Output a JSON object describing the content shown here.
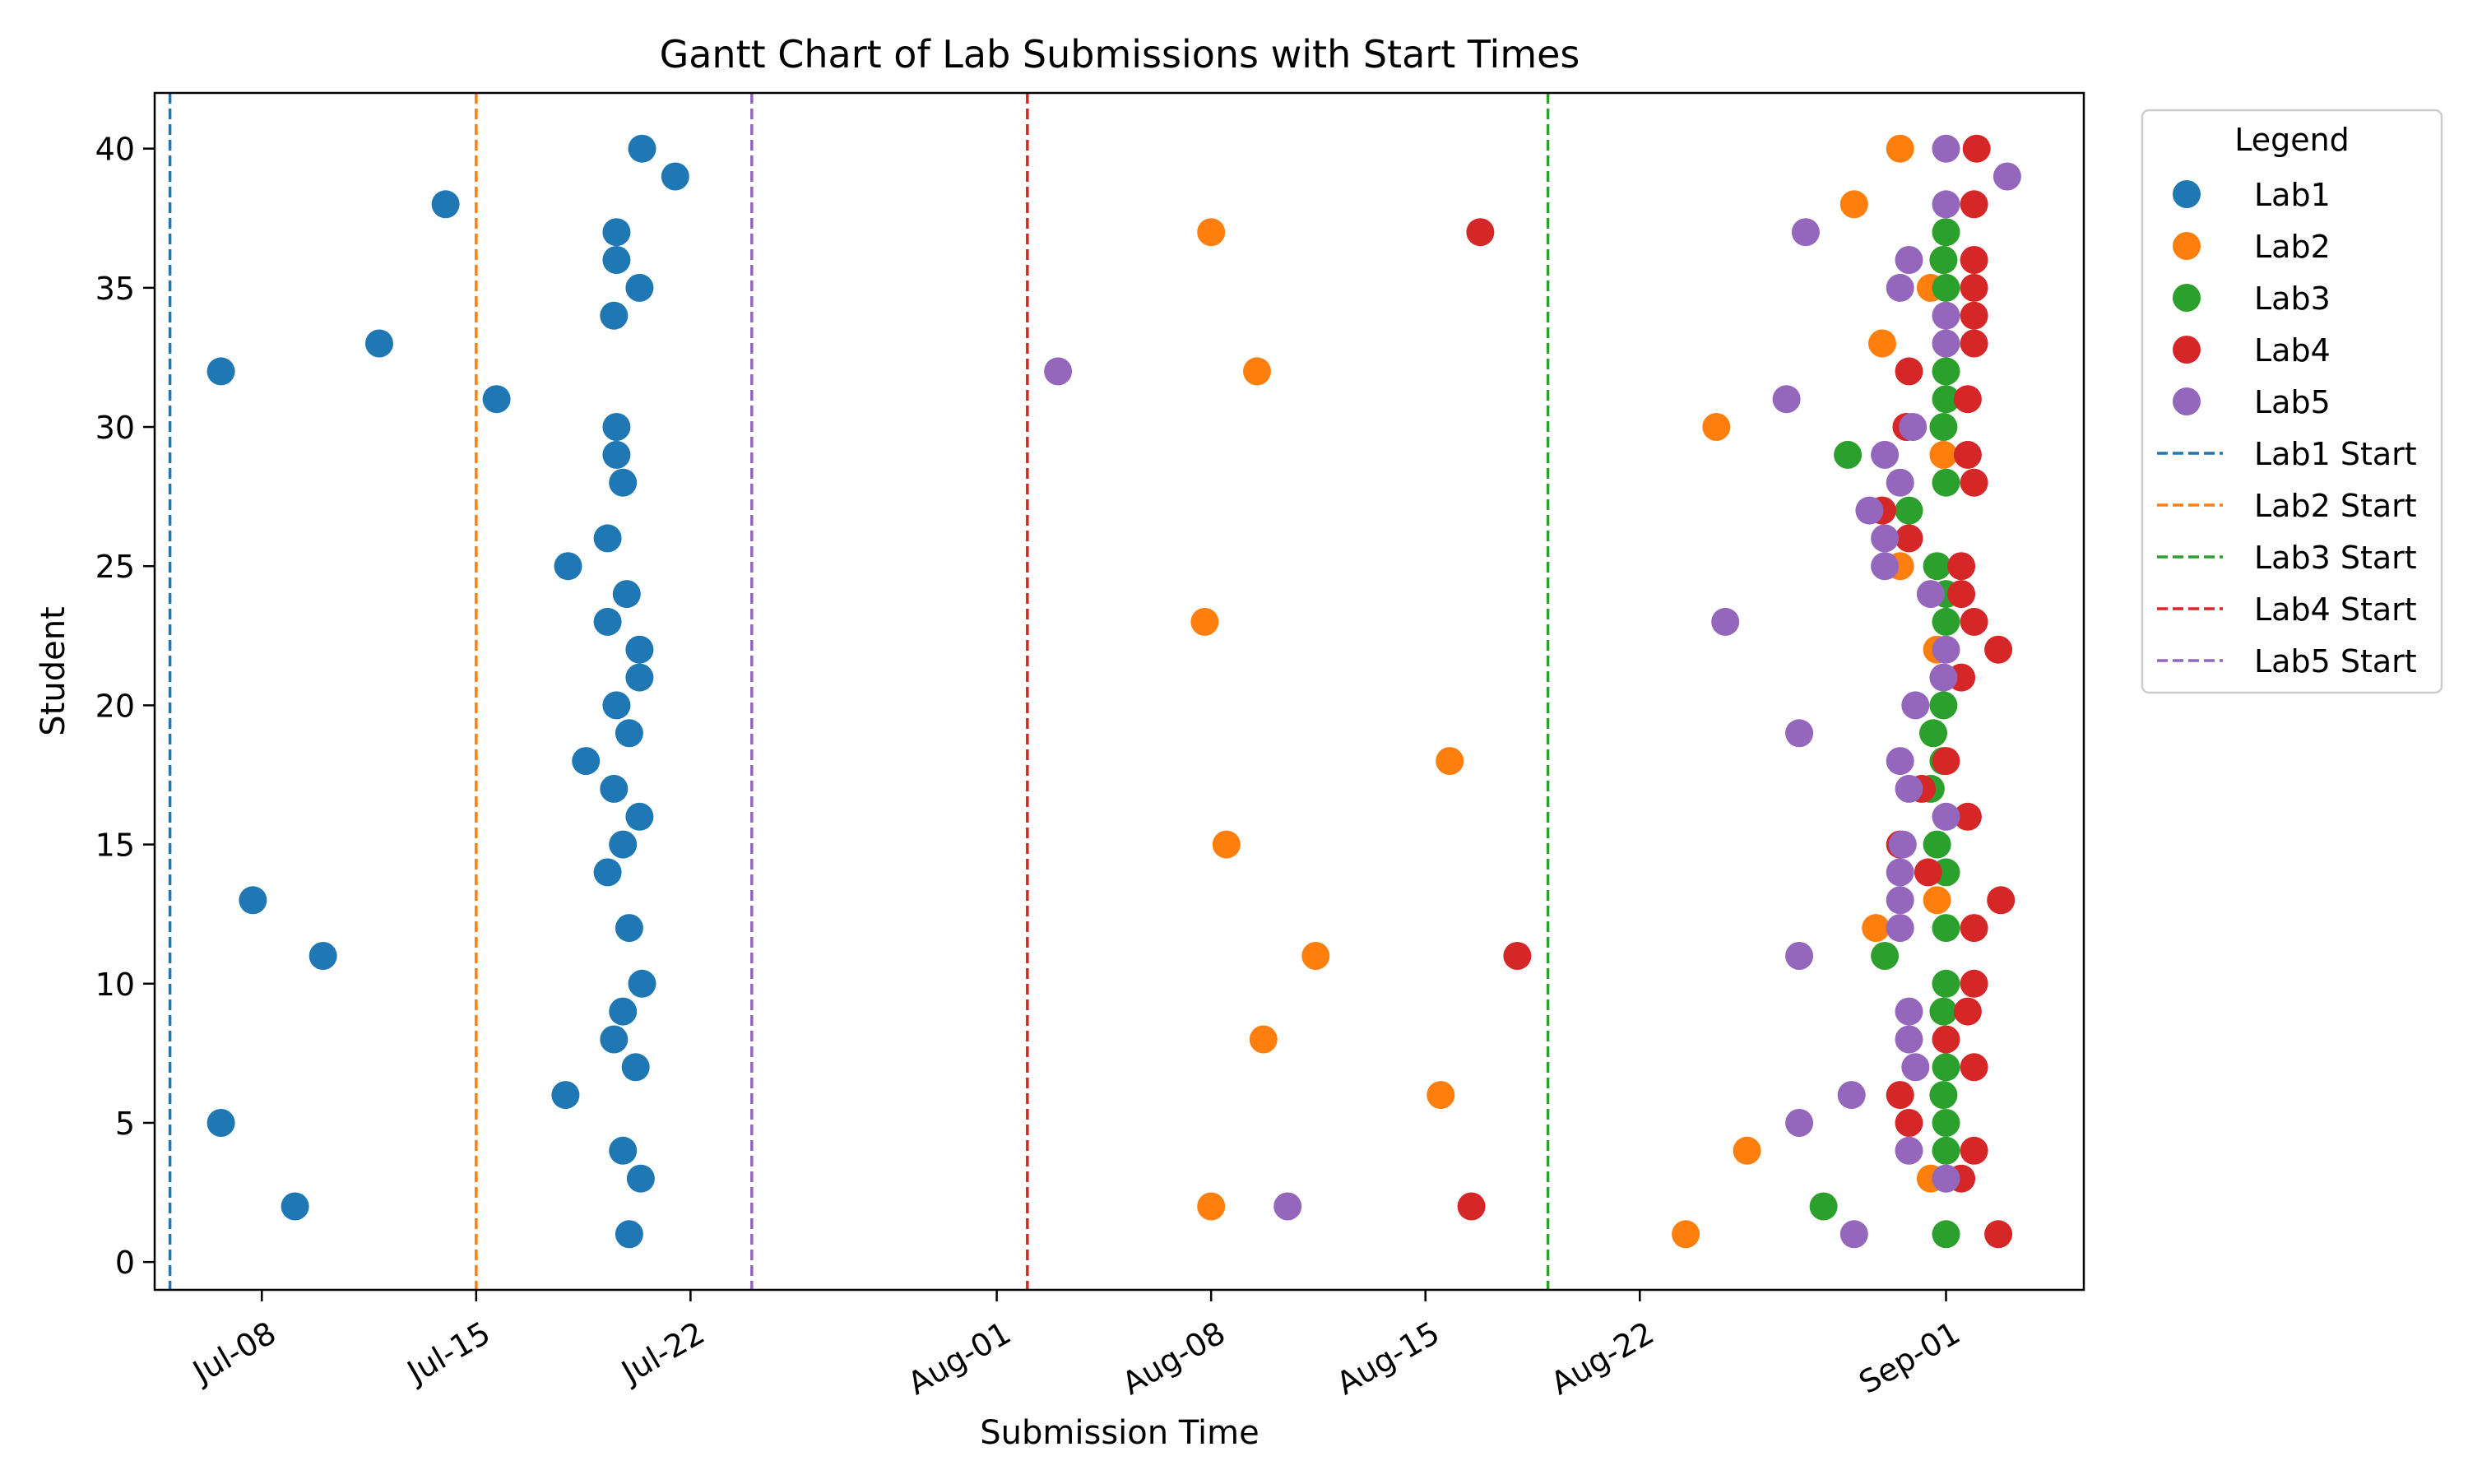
{
  "chart_data": {
    "type": "scatter",
    "title": "Gantt Chart of Lab Submissions with Start Times",
    "xlabel": "Submission Time",
    "ylabel": "Student",
    "x_axis_type": "date",
    "xlim": [
      "2024-07-04T12:00",
      "2024-09-05T12:00"
    ],
    "ylim": [
      -1,
      42
    ],
    "x_ticks": [
      {
        "date": "2024-07-08",
        "label": "Jul-08"
      },
      {
        "date": "2024-07-15",
        "label": "Jul-15"
      },
      {
        "date": "2024-07-22",
        "label": "Jul-22"
      },
      {
        "date": "2024-08-01",
        "label": "Aug-01"
      },
      {
        "date": "2024-08-08",
        "label": "Aug-08"
      },
      {
        "date": "2024-08-15",
        "label": "Aug-15"
      },
      {
        "date": "2024-08-22",
        "label": "Aug-22"
      },
      {
        "date": "2024-09-01",
        "label": "Sep-01"
      }
    ],
    "y_ticks": [
      0,
      5,
      10,
      15,
      20,
      25,
      30,
      35,
      40
    ],
    "grid": false,
    "legend": {
      "title": "Legend",
      "placement": "outside-right-top"
    },
    "start_lines": [
      {
        "name": "Lab1 Start",
        "date": "2024-07-05T00:00",
        "color": "#1f77b4"
      },
      {
        "name": "Lab2 Start",
        "date": "2024-07-15T00:00",
        "color": "#ff7f0e"
      },
      {
        "name": "Lab3 Start",
        "date": "2024-08-19T00:00",
        "color": "#2ca02c"
      },
      {
        "name": "Lab4 Start",
        "date": "2024-08-02T00:00",
        "color": "#d62728"
      },
      {
        "name": "Lab5 Start",
        "date": "2024-07-24T00:00",
        "color": "#9467bd"
      }
    ],
    "series": [
      {
        "name": "Lab1",
        "color": "#1f77b4",
        "points": [
          [
            "2024-07-20T00:00",
            1
          ],
          [
            "2024-07-09T02:00",
            2
          ],
          [
            "2024-07-20T09:00",
            3
          ],
          [
            "2024-07-19T19:00",
            4
          ],
          [
            "2024-07-06T16:00",
            5
          ],
          [
            "2024-07-17T22:00",
            6
          ],
          [
            "2024-07-20T05:00",
            7
          ],
          [
            "2024-07-19T12:00",
            8
          ],
          [
            "2024-07-19T19:00",
            9
          ],
          [
            "2024-07-20T10:00",
            10
          ],
          [
            "2024-07-10T00:00",
            11
          ],
          [
            "2024-07-20T00:00",
            12
          ],
          [
            "2024-07-07T17:00",
            13
          ],
          [
            "2024-07-19T07:00",
            14
          ],
          [
            "2024-07-19T19:00",
            15
          ],
          [
            "2024-07-20T08:00",
            16
          ],
          [
            "2024-07-19T12:00",
            17
          ],
          [
            "2024-07-18T14:00",
            18
          ],
          [
            "2024-07-20T00:00",
            19
          ],
          [
            "2024-07-19T14:00",
            20
          ],
          [
            "2024-07-20T08:00",
            21
          ],
          [
            "2024-07-20T08:00",
            22
          ],
          [
            "2024-07-19T07:00",
            23
          ],
          [
            "2024-07-19T22:00",
            24
          ],
          [
            "2024-07-18T00:00",
            25
          ],
          [
            "2024-07-19T07:00",
            26
          ],
          [
            "2024-07-19T19:00",
            28
          ],
          [
            "2024-07-19T14:00",
            29
          ],
          [
            "2024-07-19T14:00",
            30
          ],
          [
            "2024-07-15T16:00",
            31
          ],
          [
            "2024-07-06T16:00",
            32
          ],
          [
            "2024-07-11T20:00",
            33
          ],
          [
            "2024-07-19T12:00",
            34
          ],
          [
            "2024-07-20T08:00",
            35
          ],
          [
            "2024-07-19T14:00",
            36
          ],
          [
            "2024-07-19T14:00",
            37
          ],
          [
            "2024-07-14T00:00",
            38
          ],
          [
            "2024-07-21T12:00",
            39
          ],
          [
            "2024-07-20T10:00",
            40
          ]
        ]
      },
      {
        "name": "Lab2",
        "color": "#ff7f0e",
        "points": [
          [
            "2024-08-23T12:00",
            1
          ],
          [
            "2024-08-08T00:00",
            2
          ],
          [
            "2024-08-31T12:00",
            3
          ],
          [
            "2024-08-25T12:00",
            4
          ],
          [
            "2024-08-15T12:00",
            6
          ],
          [
            "2024-08-09T17:00",
            8
          ],
          [
            "2024-08-11T10:00",
            11
          ],
          [
            "2024-08-29T17:00",
            12
          ],
          [
            "2024-08-31T17:00",
            13
          ],
          [
            "2024-08-08T12:00",
            15
          ],
          [
            "2024-08-15T19:00",
            18
          ],
          [
            "2024-08-31T17:00",
            22
          ],
          [
            "2024-08-07T19:00",
            23
          ],
          [
            "2024-08-30T12:00",
            25
          ],
          [
            "2024-08-29T22:00",
            27
          ],
          [
            "2024-08-31T22:00",
            29
          ],
          [
            "2024-08-24T12:00",
            30
          ],
          [
            "2024-08-09T12:00",
            32
          ],
          [
            "2024-08-29T22:00",
            33
          ],
          [
            "2024-08-31T12:00",
            35
          ],
          [
            "2024-08-31T22:00",
            36
          ],
          [
            "2024-08-08T00:00",
            37
          ],
          [
            "2024-08-29T00:00",
            38
          ],
          [
            "2024-08-30T12:00",
            40
          ]
        ]
      },
      {
        "name": "Lab3",
        "color": "#2ca02c",
        "points": [
          [
            "2024-09-01T00:00",
            1
          ],
          [
            "2024-08-28T00:00",
            2
          ],
          [
            "2024-09-01T00:00",
            3
          ],
          [
            "2024-09-01T00:00",
            4
          ],
          [
            "2024-09-01T00:00",
            5
          ],
          [
            "2024-08-31T22:00",
            6
          ],
          [
            "2024-09-01T00:00",
            7
          ],
          [
            "2024-08-31T22:00",
            9
          ],
          [
            "2024-09-01T00:00",
            10
          ],
          [
            "2024-08-30T00:00",
            11
          ],
          [
            "2024-09-01T00:00",
            12
          ],
          [
            "2024-09-01T00:00",
            14
          ],
          [
            "2024-08-31T17:00",
            15
          ],
          [
            "2024-08-31T12:00",
            17
          ],
          [
            "2024-08-31T22:00",
            18
          ],
          [
            "2024-08-31T14:00",
            19
          ],
          [
            "2024-08-31T22:00",
            20
          ],
          [
            "2024-09-01T00:00",
            23
          ],
          [
            "2024-09-01T00:00",
            24
          ],
          [
            "2024-08-31T17:00",
            25
          ],
          [
            "2024-08-30T19:00",
            27
          ],
          [
            "2024-09-01T00:00",
            28
          ],
          [
            "2024-08-28T19:00",
            29
          ],
          [
            "2024-08-31T22:00",
            30
          ],
          [
            "2024-09-01T00:00",
            31
          ],
          [
            "2024-09-01T00:00",
            32
          ],
          [
            "2024-09-01T00:00",
            35
          ],
          [
            "2024-08-31T22:00",
            36
          ],
          [
            "2024-09-01T00:00",
            37
          ]
        ]
      },
      {
        "name": "Lab4",
        "color": "#d62728",
        "points": [
          [
            "2024-09-02T17:00",
            1
          ],
          [
            "2024-08-16T12:00",
            2
          ],
          [
            "2024-09-01T12:00",
            3
          ],
          [
            "2024-09-01T22:00",
            4
          ],
          [
            "2024-08-30T19:00",
            5
          ],
          [
            "2024-08-30T12:00",
            6
          ],
          [
            "2024-09-01T22:00",
            7
          ],
          [
            "2024-09-01T00:00",
            8
          ],
          [
            "2024-09-01T17:00",
            9
          ],
          [
            "2024-09-01T22:00",
            10
          ],
          [
            "2024-08-18T00:00",
            11
          ],
          [
            "2024-09-01T22:00",
            12
          ],
          [
            "2024-09-02T19:00",
            13
          ],
          [
            "2024-08-31T10:00",
            14
          ],
          [
            "2024-08-30T12:00",
            15
          ],
          [
            "2024-09-01T17:00",
            16
          ],
          [
            "2024-08-31T05:00",
            17
          ],
          [
            "2024-09-01T00:00",
            18
          ],
          [
            "2024-09-01T12:00",
            21
          ],
          [
            "2024-09-02T17:00",
            22
          ],
          [
            "2024-09-01T22:00",
            23
          ],
          [
            "2024-09-01T12:00",
            24
          ],
          [
            "2024-09-01T12:00",
            25
          ],
          [
            "2024-08-30T19:00",
            26
          ],
          [
            "2024-08-29T22:00",
            27
          ],
          [
            "2024-09-01T22:00",
            28
          ],
          [
            "2024-09-01T17:00",
            29
          ],
          [
            "2024-08-30T17:00",
            30
          ],
          [
            "2024-09-01T17:00",
            31
          ],
          [
            "2024-08-30T19:00",
            32
          ],
          [
            "2024-09-01T22:00",
            33
          ],
          [
            "2024-09-01T22:00",
            34
          ],
          [
            "2024-09-01T22:00",
            35
          ],
          [
            "2024-09-01T22:00",
            36
          ],
          [
            "2024-08-16T19:00",
            37
          ],
          [
            "2024-09-01T22:00",
            38
          ],
          [
            "2024-09-02T00:00",
            40
          ]
        ]
      },
      {
        "name": "Lab5",
        "color": "#9467bd",
        "points": [
          [
            "2024-08-29T00:00",
            1
          ],
          [
            "2024-08-10T12:00",
            2
          ],
          [
            "2024-09-01T00:00",
            3
          ],
          [
            "2024-08-30T19:00",
            4
          ],
          [
            "2024-08-27T05:00",
            5
          ],
          [
            "2024-08-28T22:00",
            6
          ],
          [
            "2024-08-31T00:00",
            7
          ],
          [
            "2024-08-30T19:00",
            8
          ],
          [
            "2024-08-30T19:00",
            9
          ],
          [
            "2024-08-27T05:00",
            11
          ],
          [
            "2024-08-30T12:00",
            12
          ],
          [
            "2024-08-30T12:00",
            13
          ],
          [
            "2024-08-30T12:00",
            14
          ],
          [
            "2024-08-30T14:00",
            15
          ],
          [
            "2024-09-01T00:00",
            16
          ],
          [
            "2024-08-30T19:00",
            17
          ],
          [
            "2024-08-30T12:00",
            18
          ],
          [
            "2024-08-27T05:00",
            19
          ],
          [
            "2024-08-31T00:00",
            20
          ],
          [
            "2024-08-31T22:00",
            21
          ],
          [
            "2024-09-01T00:00",
            22
          ],
          [
            "2024-08-24T19:00",
            23
          ],
          [
            "2024-08-31T12:00",
            24
          ],
          [
            "2024-08-30T00:00",
            25
          ],
          [
            "2024-08-30T00:00",
            26
          ],
          [
            "2024-08-29T12:00",
            27
          ],
          [
            "2024-08-30T12:00",
            28
          ],
          [
            "2024-08-30T00:00",
            29
          ],
          [
            "2024-08-30T22:00",
            30
          ],
          [
            "2024-08-26T19:00",
            31
          ],
          [
            "2024-08-03T00:00",
            32
          ],
          [
            "2024-09-01T00:00",
            33
          ],
          [
            "2024-09-01T00:00",
            34
          ],
          [
            "2024-08-30T12:00",
            35
          ],
          [
            "2024-08-30T19:00",
            36
          ],
          [
            "2024-08-27T10:00",
            37
          ],
          [
            "2024-09-01T00:00",
            38
          ],
          [
            "2024-09-03T00:00",
            39
          ],
          [
            "2024-09-01T00:00",
            40
          ]
        ]
      }
    ]
  }
}
